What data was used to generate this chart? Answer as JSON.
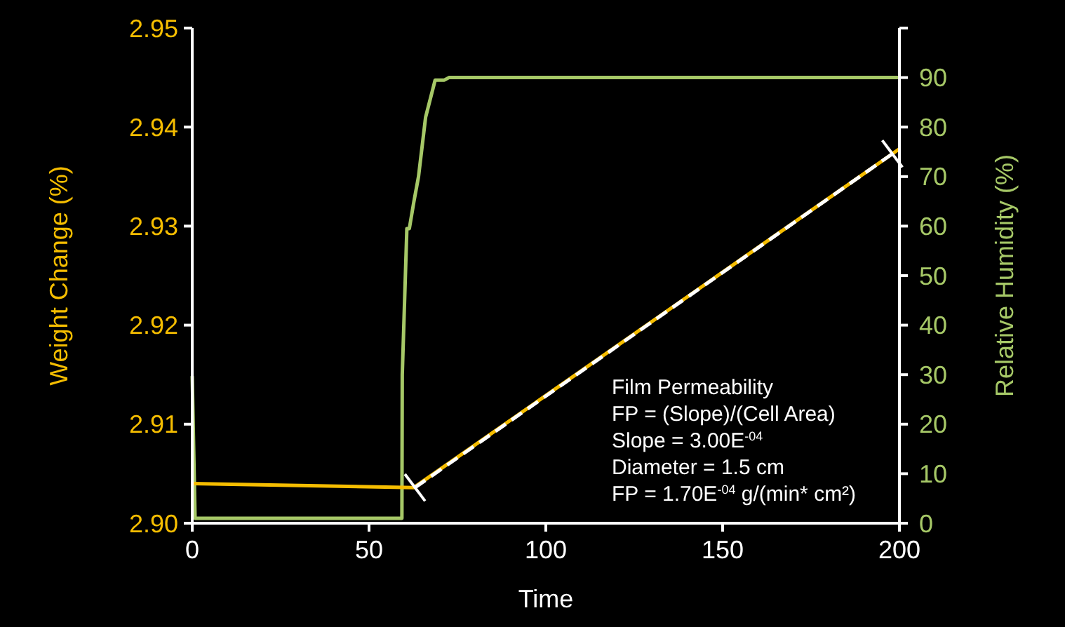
{
  "chart_data": {
    "type": "line",
    "xlabel": "Time",
    "ylabel": "Weight Change (%)",
    "y2label": "Relative Humidity (%)",
    "xlim": [
      0,
      200
    ],
    "xticks": [
      0,
      50,
      100,
      150,
      200
    ],
    "ylim": [
      2.9,
      2.95
    ],
    "yticks": [
      {
        "value": 2.9,
        "label": "2.90"
      },
      {
        "value": 2.91,
        "label": "2.91"
      },
      {
        "value": 2.92,
        "label": "2.92"
      },
      {
        "value": 2.93,
        "label": "2.93"
      },
      {
        "value": 2.94,
        "label": "2.94"
      },
      {
        "value": 2.95,
        "label": "2.95"
      }
    ],
    "y2lim": [
      0,
      100
    ],
    "y2ticks": [
      0,
      10,
      20,
      30,
      40,
      50,
      60,
      70,
      80,
      90,
      {
        "value": 100,
        "label": null
      }
    ],
    "grid": false,
    "marker": "none",
    "series": [
      {
        "color": "#a6c867",
        "axis": "y2",
        "x": [
          0,
          0.8,
          59.3,
          59.4,
          60.7,
          61.4,
          62.7,
          64,
          66,
          68.7,
          71.3,
          72.6,
          200
        ],
        "values": [
          29.7,
          1,
          1,
          30,
          59.5,
          59.5,
          65,
          70,
          82,
          89.5,
          89.5,
          90,
          90
        ]
      },
      {
        "color": "#f5bd00",
        "x": [
          0,
          62.7,
          200
        ],
        "values": [
          2.904,
          2.9036,
          2.9378
        ]
      },
      {
        "type": "line",
        "color": "#ffffff",
        "line_style": "dashed",
        "marker": "cross",
        "x": [
          63,
          198
        ],
        "values": [
          2.9036,
          2.9373
        ]
      }
    ],
    "annotations": [
      "Film Permeability",
      "FP = (Slope)/(Cell Area)",
      "Slope = 3.00E$^{-04}$",
      "Diameter = 1.5 cm",
      "FP = 1.70E$^{-04}$ g/(min* cm²)"
    ]
  }
}
